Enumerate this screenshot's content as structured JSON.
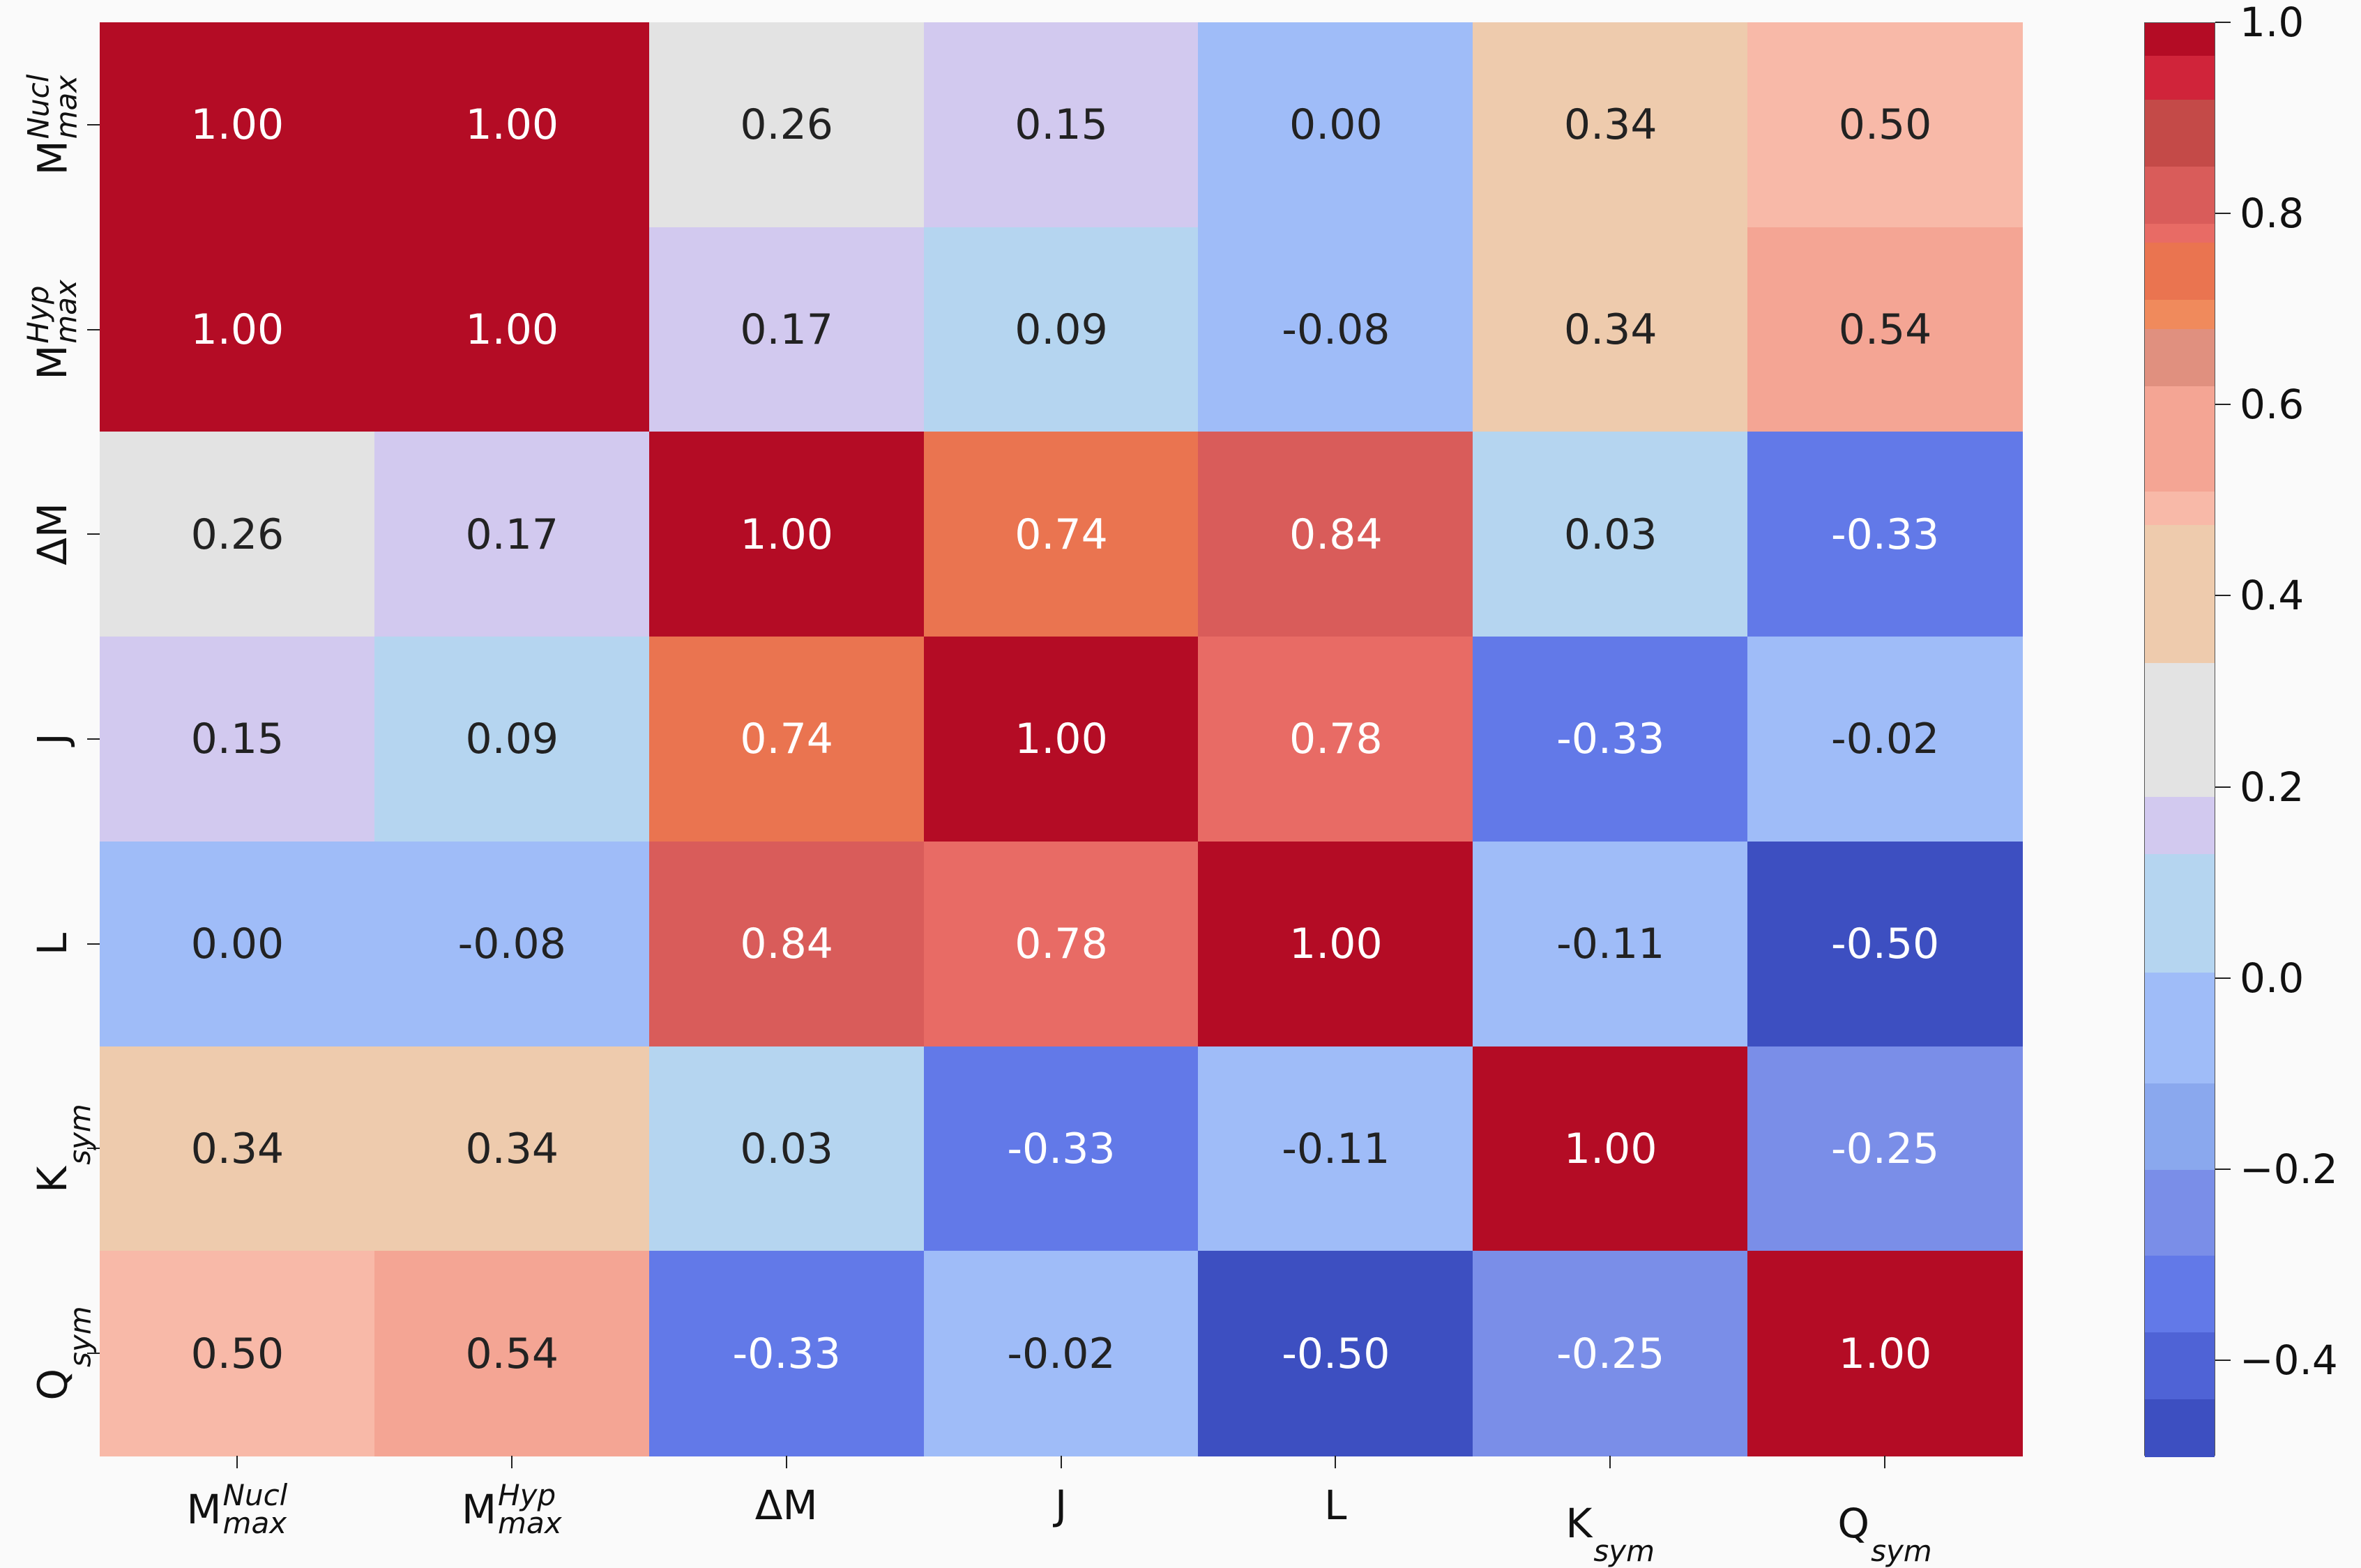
{
  "chart_data": {
    "type": "heatmap",
    "title": "",
    "labels": [
      {
        "base": "M",
        "sup": "Nucl",
        "sub": "max"
      },
      {
        "base": "M",
        "sup": "Hyp",
        "sub": "max"
      },
      {
        "base": "ΔM",
        "sup": "",
        "sub": ""
      },
      {
        "base": "J",
        "sup": "",
        "sub": ""
      },
      {
        "base": "L",
        "sup": "",
        "sub": ""
      },
      {
        "base": "K",
        "sup": "",
        "sub": "sym"
      },
      {
        "base": "Q",
        "sup": "",
        "sub": "sym"
      }
    ],
    "values": [
      [
        1.0,
        1.0,
        0.26,
        0.15,
        0.0,
        0.34,
        0.5
      ],
      [
        1.0,
        1.0,
        0.17,
        0.09,
        -0.08,
        0.34,
        0.54
      ],
      [
        0.26,
        0.17,
        1.0,
        0.74,
        0.84,
        0.03,
        -0.33
      ],
      [
        0.15,
        0.09,
        0.74,
        1.0,
        0.78,
        -0.33,
        -0.02
      ],
      [
        0.0,
        -0.08,
        0.84,
        0.78,
        1.0,
        -0.11,
        -0.5
      ],
      [
        0.34,
        0.34,
        0.03,
        -0.33,
        -0.11,
        1.0,
        -0.25
      ],
      [
        0.5,
        0.54,
        -0.33,
        -0.02,
        -0.5,
        -0.25,
        1.0
      ]
    ],
    "annotations_format": "0.00",
    "colormap": "coolwarm (discrete)",
    "vrange": [
      -0.5,
      1.0
    ],
    "colorbar": {
      "ticks": [
        "1.0",
        "0.8",
        "0.6",
        "0.4",
        "0.2",
        "0.0",
        "−0.2",
        "−0.4"
      ],
      "tick_values": [
        1.0,
        0.8,
        0.6,
        0.4,
        0.2,
        0.0,
        -0.2,
        -0.4
      ],
      "levels": [
        {
          "min": 0.966,
          "color": "#b40c25"
        },
        {
          "min": 0.92,
          "color": "#d0243a"
        },
        {
          "min": 0.85,
          "color": "#c44a48"
        },
        {
          "min": 0.79,
          "color": "#d95c5a"
        },
        {
          "min": 0.77,
          "color": "#e86b65"
        },
        {
          "min": 0.71,
          "color": "#ea7450"
        },
        {
          "min": 0.68,
          "color": "#f08a5c"
        },
        {
          "min": 0.62,
          "color": "#e0907f"
        },
        {
          "min": 0.51,
          "color": "#f4a594"
        },
        {
          "min": 0.475,
          "color": "#f8b9a8"
        },
        {
          "min": 0.33,
          "color": "#eecbad"
        },
        {
          "min": 0.19,
          "color": "#e3e3e3"
        },
        {
          "min": 0.13,
          "color": "#d2c9ef"
        },
        {
          "min": 0.006,
          "color": "#b5d5f0"
        },
        {
          "min": -0.11,
          "color": "#9fbcf8"
        },
        {
          "min": -0.2,
          "color": "#8aa8ee"
        },
        {
          "min": -0.29,
          "color": "#7a8ee8"
        },
        {
          "min": -0.37,
          "color": "#6279e8"
        },
        {
          "min": -0.44,
          "color": "#4f63d6"
        },
        {
          "min": -1.0,
          "color": "#3d4fc1"
        }
      ]
    },
    "grid": false
  }
}
